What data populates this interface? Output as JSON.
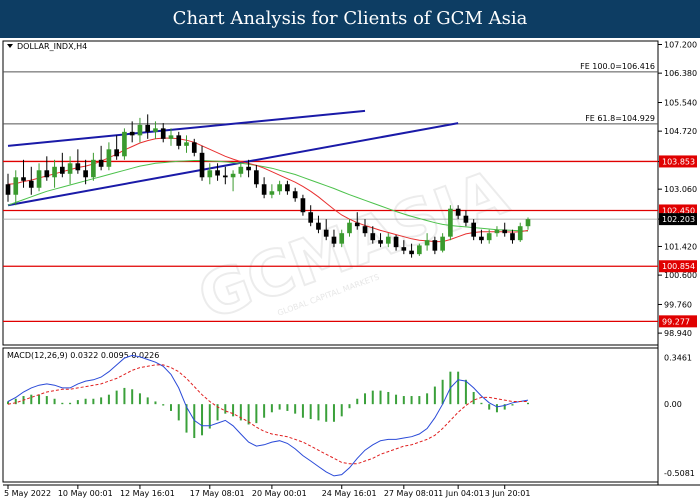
{
  "header": {
    "title": "Chart Analysis for Clients of GCM Asia"
  },
  "watermark": {
    "text": "GCMASIA",
    "sub": "GLOBAL CAPITAL MARKETS"
  },
  "colors": {
    "header_bg": "#0d3d63",
    "bull": "#3a9a2e",
    "bear": "#000000",
    "ma_fast": "#e83030",
    "ma_slow": "#4cc24c",
    "channel": "#1a1aa8",
    "sr_line": "#e00000",
    "fib_line": "#555555",
    "macd_line": "#2a4ad8",
    "macd_signal": "#e02020",
    "macd_hist": "#3aa03a"
  },
  "chart_data": {
    "type": "candlestick",
    "symbol_label": "DOLLAR_INDX,H4",
    "price_axis": {
      "range": [
        98.6,
        107.3
      ],
      "ticks": [
        "107.200",
        "106.380",
        "105.540",
        "104.720",
        "103.850",
        "103.060",
        "102.203",
        "101.420",
        "100.600",
        "99.760",
        "98.940"
      ]
    },
    "time_axis": {
      "labels": [
        "5 May 2022",
        "10 May 00:01",
        "12 May 16:01",
        "17 May 08:01",
        "20 May 00:01",
        "24 May 16:01",
        "27 May 08:01",
        "1 Jun 04:01",
        "3 Jun 20:01"
      ]
    },
    "current_price": {
      "value": 102.203,
      "label": "102.203"
    },
    "levels": [
      {
        "name": "resistance-1",
        "value": 103.853,
        "label": "103.853"
      },
      {
        "name": "resistance-2",
        "value": 102.45,
        "label": "102.450"
      },
      {
        "name": "support-1",
        "value": 100.854,
        "label": "100.854"
      },
      {
        "name": "support-2",
        "value": 99.277,
        "label": "99.277"
      }
    ],
    "fib_levels": [
      {
        "value": 106.416,
        "label": "FE 100.0=106.416"
      },
      {
        "value": 104.929,
        "label": "FE 61.8=104.929"
      }
    ],
    "candles": [
      {
        "o": 103.2,
        "h": 103.5,
        "l": 102.7,
        "c": 102.9
      },
      {
        "o": 102.9,
        "h": 103.6,
        "l": 102.6,
        "c": 103.4
      },
      {
        "o": 103.4,
        "h": 103.9,
        "l": 103.1,
        "c": 103.3
      },
      {
        "o": 103.3,
        "h": 103.7,
        "l": 102.9,
        "c": 103.1
      },
      {
        "o": 103.1,
        "h": 103.8,
        "l": 103.0,
        "c": 103.6
      },
      {
        "o": 103.6,
        "h": 104.0,
        "l": 103.3,
        "c": 103.4
      },
      {
        "o": 103.4,
        "h": 103.9,
        "l": 103.1,
        "c": 103.7
      },
      {
        "o": 103.7,
        "h": 104.1,
        "l": 103.4,
        "c": 103.5
      },
      {
        "o": 103.5,
        "h": 104.0,
        "l": 103.2,
        "c": 103.8
      },
      {
        "o": 103.8,
        "h": 104.2,
        "l": 103.5,
        "c": 103.6
      },
      {
        "o": 103.6,
        "h": 103.9,
        "l": 103.2,
        "c": 103.4
      },
      {
        "o": 103.4,
        "h": 104.1,
        "l": 103.3,
        "c": 103.9
      },
      {
        "o": 103.9,
        "h": 104.3,
        "l": 103.6,
        "c": 103.7
      },
      {
        "o": 103.7,
        "h": 104.4,
        "l": 103.6,
        "c": 104.2
      },
      {
        "o": 104.2,
        "h": 104.6,
        "l": 103.9,
        "c": 104.0
      },
      {
        "o": 104.0,
        "h": 104.8,
        "l": 103.9,
        "c": 104.7
      },
      {
        "o": 104.7,
        "h": 105.0,
        "l": 104.4,
        "c": 104.6
      },
      {
        "o": 104.6,
        "h": 105.1,
        "l": 104.4,
        "c": 104.9
      },
      {
        "o": 104.9,
        "h": 105.2,
        "l": 104.5,
        "c": 104.7
      },
      {
        "o": 104.7,
        "h": 105.0,
        "l": 104.5,
        "c": 104.8
      },
      {
        "o": 104.8,
        "h": 104.95,
        "l": 104.4,
        "c": 104.5
      },
      {
        "o": 104.5,
        "h": 104.8,
        "l": 104.3,
        "c": 104.6
      },
      {
        "o": 104.6,
        "h": 104.7,
        "l": 104.2,
        "c": 104.3
      },
      {
        "o": 104.3,
        "h": 104.6,
        "l": 104.1,
        "c": 104.4
      },
      {
        "o": 104.4,
        "h": 104.5,
        "l": 104.0,
        "c": 104.1
      },
      {
        "o": 104.1,
        "h": 104.3,
        "l": 103.3,
        "c": 103.4
      },
      {
        "o": 103.4,
        "h": 103.8,
        "l": 103.2,
        "c": 103.6
      },
      {
        "o": 103.6,
        "h": 103.8,
        "l": 103.3,
        "c": 103.45
      },
      {
        "o": 103.45,
        "h": 103.7,
        "l": 103.2,
        "c": 103.4
      },
      {
        "o": 103.4,
        "h": 103.6,
        "l": 103.0,
        "c": 103.5
      },
      {
        "o": 103.5,
        "h": 103.8,
        "l": 103.4,
        "c": 103.7
      },
      {
        "o": 103.7,
        "h": 103.9,
        "l": 103.4,
        "c": 103.6
      },
      {
        "o": 103.6,
        "h": 103.75,
        "l": 103.1,
        "c": 103.2
      },
      {
        "o": 103.2,
        "h": 103.4,
        "l": 102.8,
        "c": 102.9
      },
      {
        "o": 102.9,
        "h": 103.2,
        "l": 102.8,
        "c": 103.0
      },
      {
        "o": 103.0,
        "h": 103.3,
        "l": 102.9,
        "c": 103.2
      },
      {
        "o": 103.2,
        "h": 103.3,
        "l": 102.9,
        "c": 103.0
      },
      {
        "o": 103.0,
        "h": 103.1,
        "l": 102.7,
        "c": 102.8
      },
      {
        "o": 102.8,
        "h": 102.9,
        "l": 102.3,
        "c": 102.4
      },
      {
        "o": 102.4,
        "h": 102.6,
        "l": 102.0,
        "c": 102.1
      },
      {
        "o": 102.1,
        "h": 102.3,
        "l": 101.8,
        "c": 101.9
      },
      {
        "o": 101.9,
        "h": 102.2,
        "l": 101.6,
        "c": 101.7
      },
      {
        "o": 101.7,
        "h": 101.9,
        "l": 101.4,
        "c": 101.5
      },
      {
        "o": 101.5,
        "h": 101.9,
        "l": 101.4,
        "c": 101.8
      },
      {
        "o": 101.8,
        "h": 102.2,
        "l": 101.7,
        "c": 102.1
      },
      {
        "o": 102.1,
        "h": 102.4,
        "l": 101.9,
        "c": 102.0
      },
      {
        "o": 102.0,
        "h": 102.2,
        "l": 101.7,
        "c": 101.8
      },
      {
        "o": 101.8,
        "h": 102.0,
        "l": 101.5,
        "c": 101.6
      },
      {
        "o": 101.6,
        "h": 101.8,
        "l": 101.4,
        "c": 101.5
      },
      {
        "o": 101.5,
        "h": 101.8,
        "l": 101.4,
        "c": 101.7
      },
      {
        "o": 101.7,
        "h": 101.75,
        "l": 101.3,
        "c": 101.4
      },
      {
        "o": 101.4,
        "h": 101.6,
        "l": 101.2,
        "c": 101.3
      },
      {
        "o": 101.3,
        "h": 101.5,
        "l": 101.1,
        "c": 101.2
      },
      {
        "o": 101.2,
        "h": 101.5,
        "l": 101.15,
        "c": 101.45
      },
      {
        "o": 101.45,
        "h": 101.8,
        "l": 101.3,
        "c": 101.6
      },
      {
        "o": 101.6,
        "h": 101.7,
        "l": 101.2,
        "c": 101.3
      },
      {
        "o": 101.3,
        "h": 101.8,
        "l": 101.25,
        "c": 101.7
      },
      {
        "o": 101.7,
        "h": 102.6,
        "l": 101.6,
        "c": 102.5
      },
      {
        "o": 102.5,
        "h": 102.6,
        "l": 102.2,
        "c": 102.3
      },
      {
        "o": 102.3,
        "h": 102.45,
        "l": 102.0,
        "c": 102.1
      },
      {
        "o": 102.1,
        "h": 102.2,
        "l": 101.6,
        "c": 101.7
      },
      {
        "o": 101.7,
        "h": 101.9,
        "l": 101.5,
        "c": 101.6
      },
      {
        "o": 101.6,
        "h": 101.9,
        "l": 101.5,
        "c": 101.8
      },
      {
        "o": 101.8,
        "h": 102.0,
        "l": 101.7,
        "c": 101.9
      },
      {
        "o": 101.9,
        "h": 102.1,
        "l": 101.7,
        "c": 101.8
      },
      {
        "o": 101.8,
        "h": 101.9,
        "l": 101.5,
        "c": 101.6
      },
      {
        "o": 101.6,
        "h": 102.1,
        "l": 101.55,
        "c": 102.0
      },
      {
        "o": 102.0,
        "h": 102.25,
        "l": 101.9,
        "c": 102.2
      }
    ],
    "ma_fast": [
      103.2,
      103.22,
      103.28,
      103.32,
      103.38,
      103.44,
      103.5,
      103.56,
      103.62,
      103.68,
      103.72,
      103.78,
      103.86,
      103.96,
      104.06,
      104.18,
      104.28,
      104.38,
      104.45,
      104.5,
      104.52,
      104.52,
      104.5,
      104.46,
      104.4,
      104.3,
      104.2,
      104.1,
      104.0,
      103.92,
      103.85,
      103.8,
      103.74,
      103.66,
      103.56,
      103.46,
      103.36,
      103.26,
      103.14,
      103.0,
      102.84,
      102.66,
      102.48,
      102.32,
      102.2,
      102.1,
      102.02,
      101.95,
      101.88,
      101.82,
      101.76,
      101.7,
      101.64,
      101.6,
      101.58,
      101.56,
      101.56,
      101.62,
      101.7,
      101.78,
      101.82,
      101.84,
      101.84,
      101.84,
      101.84,
      101.83,
      101.84,
      101.88
    ],
    "ma_slow": [
      102.6,
      102.68,
      102.76,
      102.84,
      102.92,
      103.0,
      103.06,
      103.12,
      103.18,
      103.24,
      103.3,
      103.36,
      103.42,
      103.48,
      103.54,
      103.6,
      103.66,
      103.72,
      103.76,
      103.8,
      103.82,
      103.84,
      103.86,
      103.87,
      103.88,
      103.88,
      103.87,
      103.86,
      103.84,
      103.82,
      103.8,
      103.77,
      103.74,
      103.7,
      103.66,
      103.6,
      103.54,
      103.48,
      103.4,
      103.32,
      103.24,
      103.16,
      103.08,
      102.99,
      102.9,
      102.82,
      102.74,
      102.66,
      102.58,
      102.5,
      102.42,
      102.35,
      102.28,
      102.22,
      102.16,
      102.1,
      102.05,
      102.02,
      102.0,
      101.98,
      101.96,
      101.94,
      101.92,
      101.9,
      101.89,
      101.88,
      101.87,
      101.86
    ],
    "channel": {
      "upper": [
        [
          0,
          104.3
        ],
        [
          46,
          105.3
        ]
      ],
      "lower": [
        [
          0,
          102.6
        ],
        [
          58,
          104.95
        ]
      ]
    },
    "macd": {
      "label": "MACD(12,26,9) 0.0322 0.0095 0.0226",
      "range": [
        -0.56,
        0.4
      ],
      "ticks": [
        "0.3461",
        "0.00",
        "-0.5081"
      ],
      "macd": [
        0.02,
        0.05,
        0.09,
        0.12,
        0.14,
        0.15,
        0.14,
        0.12,
        0.12,
        0.15,
        0.17,
        0.18,
        0.2,
        0.24,
        0.29,
        0.34,
        0.36,
        0.35,
        0.33,
        0.31,
        0.28,
        0.22,
        0.12,
        -0.02,
        -0.12,
        -0.16,
        -0.16,
        -0.14,
        -0.12,
        -0.16,
        -0.22,
        -0.28,
        -0.31,
        -0.3,
        -0.28,
        -0.27,
        -0.29,
        -0.33,
        -0.38,
        -0.42,
        -0.46,
        -0.5,
        -0.53,
        -0.52,
        -0.47,
        -0.4,
        -0.34,
        -0.3,
        -0.27,
        -0.26,
        -0.26,
        -0.25,
        -0.24,
        -0.22,
        -0.18,
        -0.1,
        0.0,
        0.12,
        0.18,
        0.17,
        0.12,
        0.06,
        0.01,
        -0.02,
        -0.01,
        0.01,
        0.02,
        0.03
      ],
      "signal": [
        0.0,
        0.01,
        0.03,
        0.05,
        0.07,
        0.09,
        0.1,
        0.11,
        0.11,
        0.12,
        0.13,
        0.14,
        0.15,
        0.17,
        0.19,
        0.22,
        0.25,
        0.27,
        0.28,
        0.29,
        0.29,
        0.27,
        0.24,
        0.19,
        0.13,
        0.07,
        0.02,
        -0.02,
        -0.05,
        -0.07,
        -0.1,
        -0.13,
        -0.17,
        -0.2,
        -0.22,
        -0.23,
        -0.24,
        -0.26,
        -0.28,
        -0.31,
        -0.34,
        -0.37,
        -0.4,
        -0.43,
        -0.44,
        -0.44,
        -0.42,
        -0.4,
        -0.37,
        -0.35,
        -0.33,
        -0.31,
        -0.3,
        -0.28,
        -0.26,
        -0.23,
        -0.18,
        -0.12,
        -0.06,
        -0.01,
        0.03,
        0.05,
        0.05,
        0.04,
        0.03,
        0.02,
        0.02,
        0.02
      ],
      "histogram": [
        0.02,
        0.04,
        0.06,
        0.07,
        0.07,
        0.06,
        0.04,
        0.01,
        0.01,
        0.03,
        0.04,
        0.04,
        0.05,
        0.07,
        0.1,
        0.12,
        0.11,
        0.08,
        0.05,
        0.02,
        -0.01,
        -0.05,
        -0.12,
        -0.21,
        -0.25,
        -0.23,
        -0.18,
        -0.12,
        -0.07,
        -0.09,
        -0.12,
        -0.15,
        -0.14,
        -0.1,
        -0.06,
        -0.04,
        -0.05,
        -0.07,
        -0.1,
        -0.11,
        -0.12,
        -0.13,
        -0.13,
        -0.09,
        -0.03,
        0.04,
        0.08,
        0.1,
        0.1,
        0.09,
        0.07,
        0.06,
        0.06,
        0.06,
        0.08,
        0.13,
        0.18,
        0.24,
        0.24,
        0.18,
        0.09,
        0.01,
        -0.04,
        -0.06,
        -0.04,
        -0.01,
        0.0,
        0.01
      ]
    }
  }
}
